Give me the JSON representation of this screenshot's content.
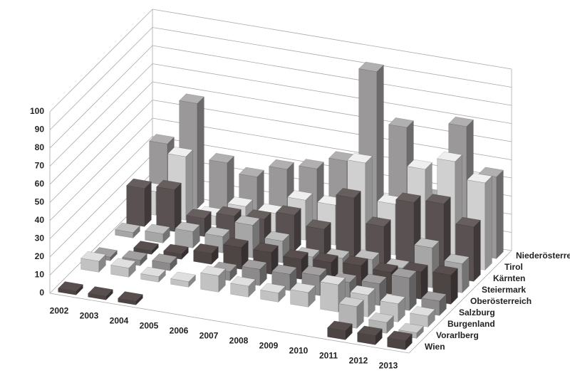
{
  "chart_data": {
    "type": "bar3d",
    "categories": [
      "2002",
      "2003",
      "2004",
      "2005",
      "2006",
      "2007",
      "2008",
      "2009",
      "2010",
      "2011",
      "2012",
      "2013"
    ],
    "series": [
      {
        "name": "Wien",
        "color": "#4d4444",
        "values": [
          2,
          2,
          2,
          null,
          null,
          null,
          null,
          null,
          null,
          5,
          5,
          5
        ]
      },
      {
        "name": "Vorarlberg",
        "color": "#b4b4b4",
        "values": [
          null,
          null,
          null,
          null,
          null,
          null,
          null,
          null,
          null,
          12,
          6,
          3
        ]
      },
      {
        "name": "Burgenland",
        "color": "#c2c2c2",
        "values": [
          6,
          5,
          3,
          3,
          9,
          6,
          5,
          8,
          15,
          12,
          10,
          6
        ]
      },
      {
        "name": "Salzburg",
        "color": "#8c8a8a",
        "values": [
          2,
          3,
          4,
          null,
          5,
          9,
          9,
          11,
          10,
          12,
          18,
          8
        ]
      },
      {
        "name": "Oberösterreich",
        "color": "#4d4444",
        "values": [
          null,
          2,
          3,
          6,
          12,
          12,
          11,
          12,
          13,
          12,
          15,
          16
        ]
      },
      {
        "name": "Steiermark",
        "color": "#a6a6a6",
        "values": [
          3,
          5,
          9,
          9,
          18,
          12,
          6,
          8,
          10,
          8,
          22,
          16
        ]
      },
      {
        "name": "Kärnten",
        "color": "#5a5252",
        "values": [
          21,
          23,
          10,
          14,
          15,
          20,
          15,
          35,
          22,
          38,
          40,
          30
        ]
      },
      {
        "name": "Tirol",
        "color": "#d0d0d0",
        "values": [
          13,
          35,
          5,
          13,
          12,
          22,
          22,
          48,
          28,
          50,
          57,
          48
        ]
      },
      {
        "name": "Niederösterreich",
        "color": "#9a9898",
        "values": [
          33,
          58,
          28,
          23,
          30,
          33,
          40,
          92,
          64,
          28,
          70,
          45
        ]
      }
    ],
    "zlim": [
      0,
      100
    ],
    "zticks": [
      0,
      10,
      20,
      30,
      40,
      50,
      60,
      70,
      80,
      90,
      100
    ],
    "grid": true
  }
}
